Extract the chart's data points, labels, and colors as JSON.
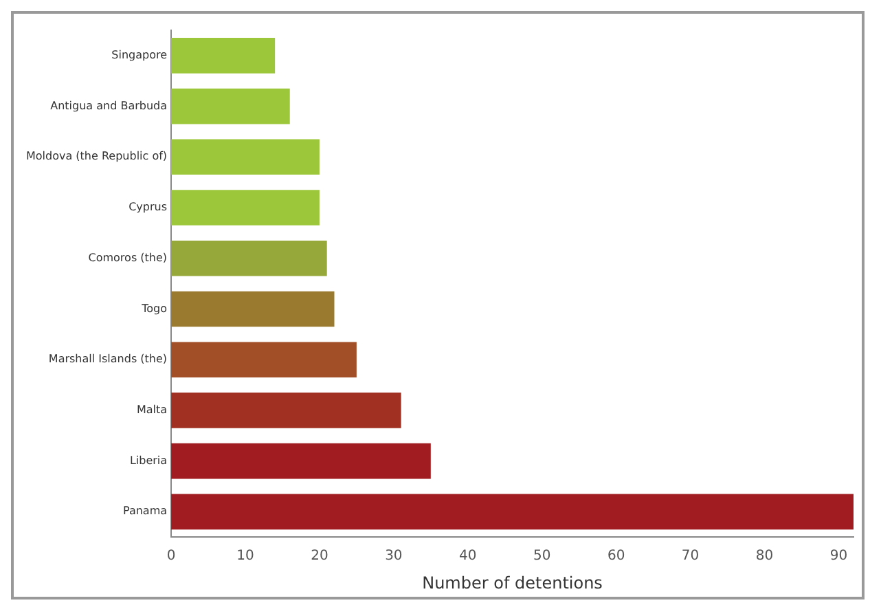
{
  "chart_data": {
    "type": "bar",
    "orientation": "horizontal",
    "xlabel": "Number of detentions",
    "categories": [
      "Singapore",
      "Antigua and Barbuda",
      "Moldova (the Republic of)",
      "Cyprus",
      "Comoros (the)",
      "Togo",
      "Marshall Islands (the)",
      "Malta",
      "Liberia",
      "Panama"
    ],
    "values": [
      14,
      16,
      20,
      20,
      21,
      22,
      25,
      31,
      35,
      92
    ],
    "colors": [
      "#9dc73a",
      "#9dc73a",
      "#9dc73a",
      "#9dc73a",
      "#97a83a",
      "#9a7a2e",
      "#a24e26",
      "#a13022",
      "#a11c20",
      "#a11c20"
    ],
    "xlim": [
      0,
      92
    ],
    "xticks": [
      0,
      10,
      20,
      30,
      40,
      50,
      60,
      70,
      80,
      90
    ],
    "grid": false,
    "legend": false
  }
}
